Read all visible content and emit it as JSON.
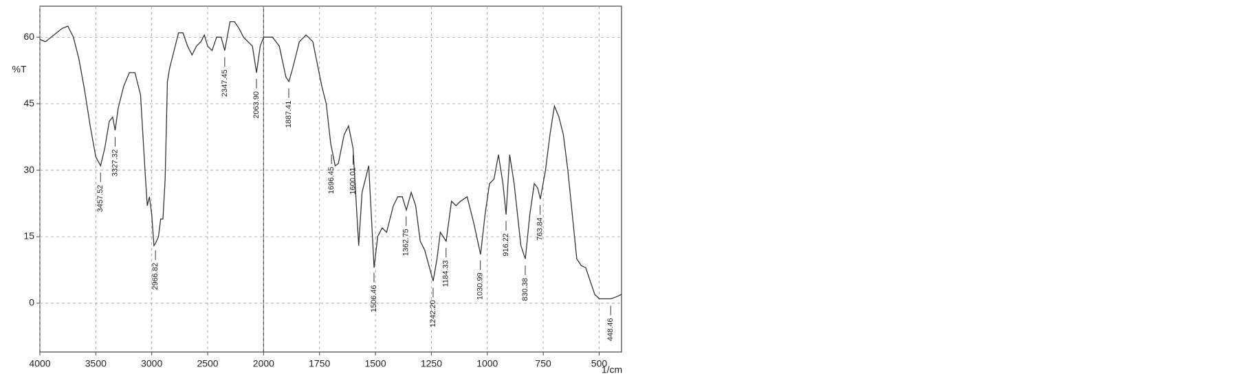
{
  "chart_data": {
    "type": "line",
    "y_label": "%T",
    "x_label": "1/cm",
    "color": "#333333",
    "xlim": [
      4000,
      400
    ],
    "x_scale_break": 2000,
    "ylim": [
      -11,
      67
    ],
    "xticks": [
      4000,
      3500,
      3000,
      2500,
      2000,
      1750,
      1500,
      1250,
      1000,
      750,
      500
    ],
    "yticks": [
      0,
      15,
      30,
      45,
      60
    ],
    "grid": true,
    "x": [
      4000,
      3950,
      3900,
      3850,
      3800,
      3750,
      3700,
      3650,
      3600,
      3550,
      3500,
      3457,
      3420,
      3380,
      3350,
      3327,
      3300,
      3250,
      3200,
      3150,
      3100,
      3060,
      3040,
      3020,
      3000,
      2980,
      2966,
      2940,
      2920,
      2900,
      2880,
      2860,
      2840,
      2800,
      2760,
      2720,
      2680,
      2640,
      2600,
      2560,
      2530,
      2500,
      2460,
      2420,
      2380,
      2347,
      2300,
      2260,
      2220,
      2180,
      2140,
      2100,
      2063,
      2030,
      2000,
      1960,
      1930,
      1900,
      1887,
      1870,
      1840,
      1810,
      1780,
      1760,
      1740,
      1720,
      1700,
      1680,
      1666,
      1640,
      1620,
      1600,
      1575,
      1560,
      1530,
      1506,
      1490,
      1470,
      1450,
      1420,
      1400,
      1380,
      1362,
      1340,
      1320,
      1300,
      1280,
      1242,
      1225,
      1210,
      1184,
      1160,
      1140,
      1120,
      1090,
      1060,
      1030,
      1010,
      990,
      970,
      950,
      930,
      916,
      900,
      880,
      850,
      830,
      810,
      790,
      775,
      763,
      740,
      720,
      700,
      680,
      660,
      640,
      600,
      580,
      560,
      540,
      520,
      500,
      448,
      420,
      400
    ],
    "values": [
      59.5,
      59,
      60,
      61,
      62,
      62.5,
      60,
      55,
      48,
      40,
      33,
      31,
      35,
      41,
      42,
      39,
      44,
      49,
      52,
      52,
      47,
      30,
      22,
      24,
      20,
      13,
      13.5,
      15,
      19,
      19,
      28,
      50,
      53,
      57,
      61,
      61,
      58,
      56,
      58,
      59,
      60.5,
      58,
      57,
      60,
      60,
      57,
      63.5,
      63.5,
      62,
      60,
      59,
      58,
      52,
      58,
      60,
      60,
      58,
      51,
      50,
      53,
      59,
      60.5,
      59,
      54,
      49,
      45,
      36,
      31,
      31.5,
      38,
      40,
      35,
      13,
      25,
      31,
      8,
      15,
      17,
      16,
      22,
      24,
      24,
      21,
      25,
      22,
      14,
      12,
      5,
      10,
      16,
      14,
      23,
      22,
      23,
      24,
      18,
      11,
      20,
      27,
      28,
      33.5,
      27,
      20,
      33.5,
      27,
      13,
      10,
      20,
      27,
      26,
      23.5,
      30,
      38,
      44.5,
      42,
      38,
      30,
      10,
      8.5,
      8,
      5,
      2,
      1,
      1,
      1.5,
      2
    ],
    "peaks": [
      {
        "x": 3457.52,
        "label": "3457.52"
      },
      {
        "x": 3327.32,
        "label": "3327.32"
      },
      {
        "x": 2966.82,
        "label": "2966.82"
      },
      {
        "x": 2347.45,
        "label": "2347.45"
      },
      {
        "x": 2063.9,
        "label": "2063.90"
      },
      {
        "x": 1887.41,
        "label": "1887.41"
      },
      {
        "x": 1696.45,
        "label": "1696.45"
      },
      {
        "x": 1600.01,
        "label": "1600.01"
      },
      {
        "x": 1506.46,
        "label": "1506.46"
      },
      {
        "x": 1362.75,
        "label": "1362.75"
      },
      {
        "x": 1242.2,
        "label": "1242.20"
      },
      {
        "x": 1184.33,
        "label": "1184.33"
      },
      {
        "x": 1030.99,
        "label": "1030.99"
      },
      {
        "x": 916.22,
        "label": "916.22"
      },
      {
        "x": 830.38,
        "label": "830.38"
      },
      {
        "x": 763.84,
        "label": "763.84"
      },
      {
        "x": 448.46,
        "label": "448.46"
      }
    ]
  }
}
